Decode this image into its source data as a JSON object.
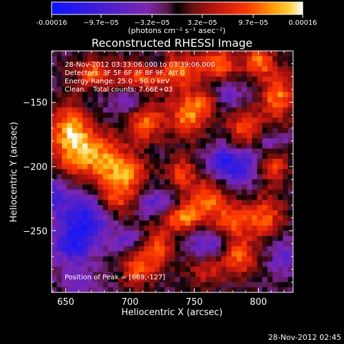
{
  "colorbar": {
    "tick_labels": [
      "-0.00016",
      "−9.7e−05",
      "−3.2e−05",
      "3.2e−05",
      "9.7e−05",
      "0.00016"
    ],
    "tick_values": [
      -0.00016,
      -9.7e-05,
      -3.2e-05,
      3.2e-05,
      9.7e-05,
      0.00016
    ],
    "range": [
      -0.00016,
      0.00016
    ],
    "units": "(photons cm⁻² s⁻¹ asec⁻²)"
  },
  "chart_data": {
    "type": "heatmap",
    "title": "Reconstructed RHESSI Image",
    "xlabel": "Heliocentric X (arcsec)",
    "ylabel": "Heliocentric Y (arcsec)",
    "xlim": [
      639,
      827
    ],
    "ylim": [
      -298,
      -110
    ],
    "x_ticks": [
      650,
      700,
      750,
      800
    ],
    "x_tick_labels": [
      "650",
      "700",
      "750",
      "800"
    ],
    "y_ticks": [
      -150,
      -200,
      -250
    ],
    "y_tick_labels": [
      "−150",
      "−200",
      "−250"
    ],
    "annotations": [
      "28-Nov-2012 03:33:06.000 to 03:39:06.000",
      "Detectors: 3F 5F 6F 7F 8F 9F, Att 0",
      "Energy Range: 25.0 - 50.0 keV",
      "Clean    Total counts: 7.66E+03"
    ],
    "peak_label": "Position of Peak = [669,-127]",
    "peak_position": [
      669,
      -127
    ],
    "colormap": [
      "#0a14ff",
      "#4a1fcf",
      "#7f26b0",
      "#5a1a4a",
      "#000000",
      "#6b0f10",
      "#c4150f",
      "#ff3a00",
      "#ff9a00",
      "#ffd040",
      "#ffffff"
    ],
    "grid_resolution": [
      47,
      47
    ],
    "blobs": [
      {
        "x": 655,
        "y": -175,
        "value": 0.000155,
        "sx": 12,
        "sy": 20
      },
      {
        "x": 680,
        "y": -195,
        "value": 0.00012,
        "sx": 14,
        "sy": 14
      },
      {
        "x": 672,
        "y": -128,
        "value": 0.00011,
        "sx": 10,
        "sy": 9
      },
      {
        "x": 705,
        "y": -130,
        "value": 9e-05,
        "sx": 12,
        "sy": 9
      },
      {
        "x": 735,
        "y": -125,
        "value": 0.00011,
        "sx": 14,
        "sy": 10
      },
      {
        "x": 770,
        "y": -120,
        "value": 0.00011,
        "sx": 10,
        "sy": 9
      },
      {
        "x": 800,
        "y": -118,
        "value": 0.00012,
        "sx": 8,
        "sy": 8
      },
      {
        "x": 712,
        "y": -165,
        "value": 0.00011,
        "sx": 10,
        "sy": 11
      },
      {
        "x": 745,
        "y": -160,
        "value": 0.00012,
        "sx": 10,
        "sy": 12
      },
      {
        "x": 760,
        "y": -150,
        "value": 8e-05,
        "sx": 8,
        "sy": 8
      },
      {
        "x": 790,
        "y": -170,
        "value": 0.0001,
        "sx": 10,
        "sy": 10
      },
      {
        "x": 815,
        "y": -145,
        "value": 0.00012,
        "sx": 9,
        "sy": 14
      },
      {
        "x": 700,
        "y": -205,
        "value": 9e-05,
        "sx": 10,
        "sy": 8
      },
      {
        "x": 690,
        "y": -225,
        "value": 0.0001,
        "sx": 12,
        "sy": 10
      },
      {
        "x": 740,
        "y": -205,
        "value": 9e-05,
        "sx": 9,
        "sy": 9
      },
      {
        "x": 760,
        "y": -225,
        "value": 0.00011,
        "sx": 10,
        "sy": 10
      },
      {
        "x": 740,
        "y": -240,
        "value": 0.00012,
        "sx": 12,
        "sy": 8
      },
      {
        "x": 780,
        "y": -242,
        "value": 0.00011,
        "sx": 10,
        "sy": 9
      },
      {
        "x": 805,
        "y": -240,
        "value": 0.0001,
        "sx": 10,
        "sy": 12
      },
      {
        "x": 720,
        "y": -265,
        "value": 0.0001,
        "sx": 10,
        "sy": 12
      },
      {
        "x": 705,
        "y": -280,
        "value": 9e-05,
        "sx": 8,
        "sy": 10
      },
      {
        "x": 785,
        "y": -270,
        "value": 0.00011,
        "sx": 9,
        "sy": 10
      },
      {
        "x": 760,
        "y": -280,
        "value": 7e-05,
        "sx": 10,
        "sy": 10
      },
      {
        "x": 812,
        "y": -200,
        "value": 9e-05,
        "sx": 8,
        "sy": 10
      },
      {
        "x": 665,
        "y": -150,
        "value": -4e-05,
        "sx": 15,
        "sy": 12
      },
      {
        "x": 665,
        "y": -240,
        "value": -0.00012,
        "sx": 14,
        "sy": 14
      },
      {
        "x": 655,
        "y": -262,
        "value": -0.0001,
        "sx": 10,
        "sy": 10
      },
      {
        "x": 700,
        "y": -148,
        "value": -6e-05,
        "sx": 8,
        "sy": 8
      },
      {
        "x": 720,
        "y": -120,
        "value": -6e-05,
        "sx": 8,
        "sy": 6
      },
      {
        "x": 775,
        "y": -145,
        "value": -6e-05,
        "sx": 9,
        "sy": 8
      },
      {
        "x": 785,
        "y": -200,
        "value": -0.0001,
        "sx": 10,
        "sy": 10
      },
      {
        "x": 810,
        "y": -180,
        "value": -5e-05,
        "sx": 8,
        "sy": 8
      },
      {
        "x": 770,
        "y": -195,
        "value": -7e-05,
        "sx": 8,
        "sy": 8
      },
      {
        "x": 720,
        "y": -230,
        "value": -8e-05,
        "sx": 10,
        "sy": 8
      },
      {
        "x": 760,
        "y": -262,
        "value": -8e-05,
        "sx": 10,
        "sy": 8
      },
      {
        "x": 700,
        "y": -258,
        "value": -6e-05,
        "sx": 9,
        "sy": 8
      },
      {
        "x": 640,
        "y": -222,
        "value": -8e-05,
        "sx": 8,
        "sy": 10
      },
      {
        "x": 820,
        "y": -270,
        "value": -6e-05,
        "sx": 8,
        "sy": 10
      },
      {
        "x": 660,
        "y": -290,
        "value": -5e-05,
        "sx": 10,
        "sy": 8
      }
    ]
  },
  "footer": {
    "timestamp": "28-Nov-2012 02:45"
  }
}
